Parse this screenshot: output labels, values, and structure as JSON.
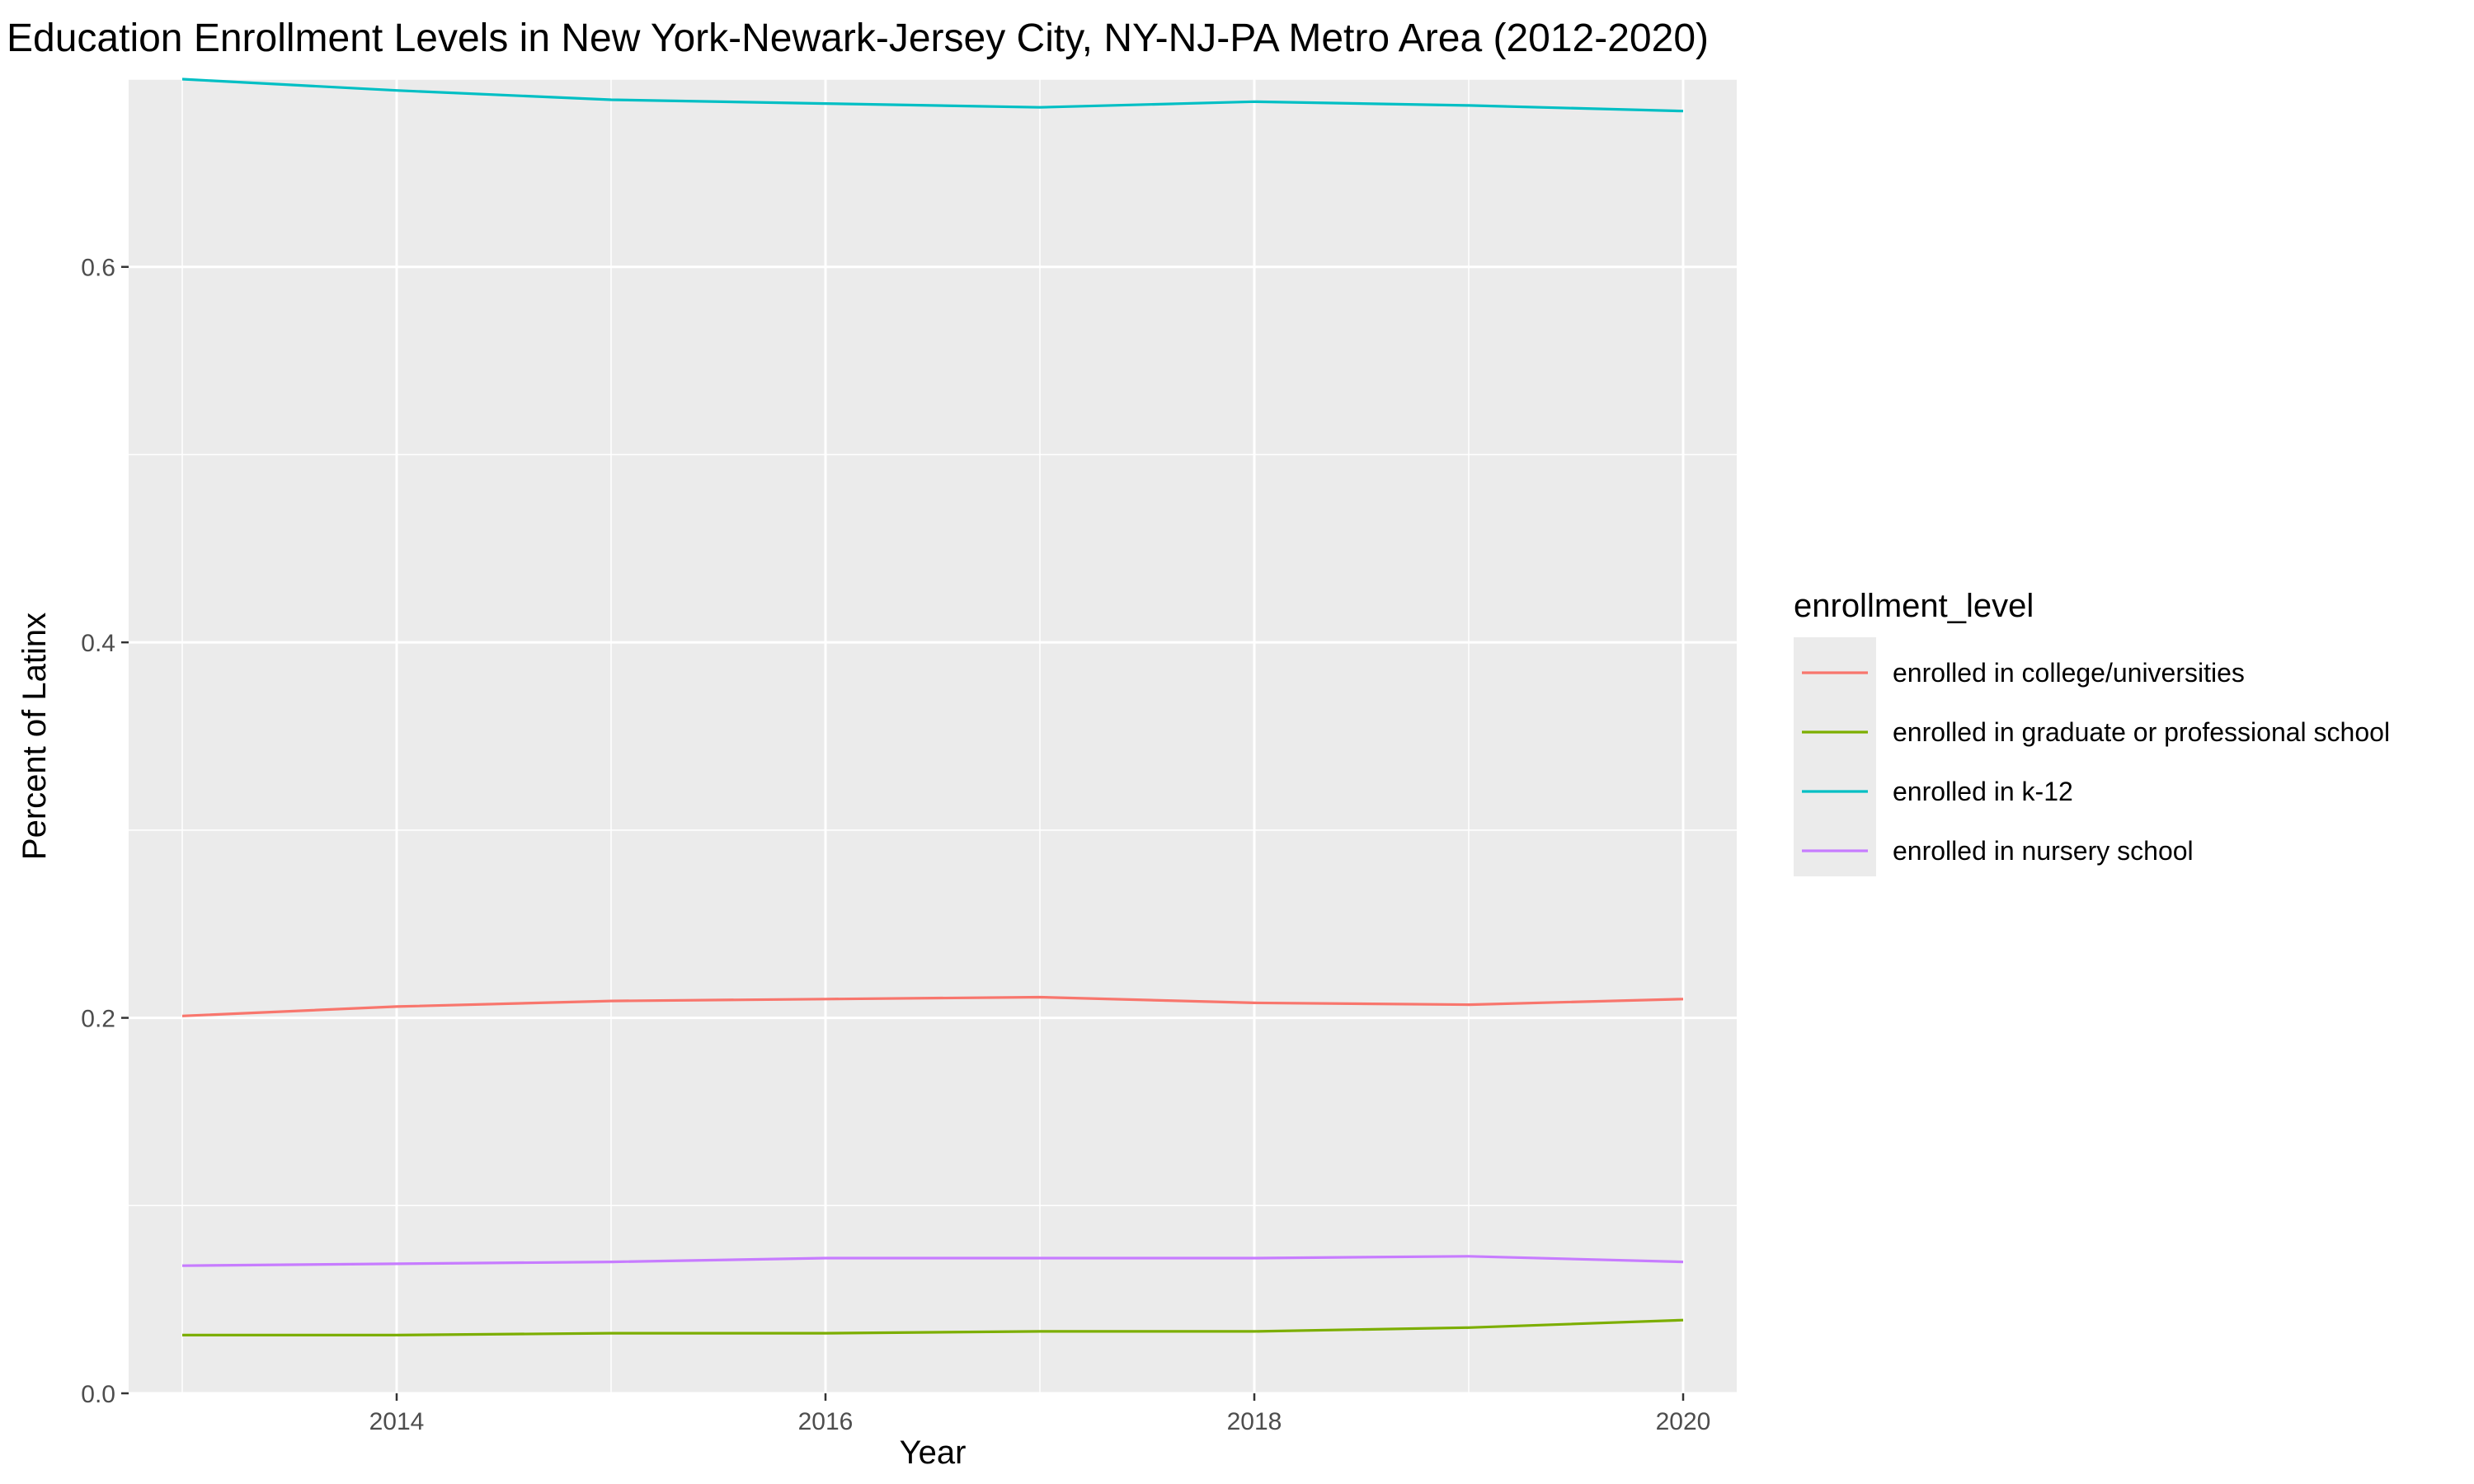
{
  "chart_data": {
    "type": "line",
    "title": "Education Enrollment Levels in New York-Newark-Jersey City, NY-NJ-PA Metro Area (2012-2020)",
    "xlabel": "Year",
    "ylabel": "Percent of Latinx",
    "xlim": [
      2012.75,
      2020.25
    ],
    "ylim": [
      -0.0,
      0.7
    ],
    "x_ticks": [
      "2014",
      "2016",
      "2018",
      "2020"
    ],
    "y_ticks": [
      "0.0",
      "0.2",
      "0.4",
      "0.6"
    ],
    "grid": true,
    "legend_title": "enrollment_level",
    "legend_position": "right",
    "x": [
      2013,
      2014,
      2015,
      2016,
      2017,
      2018,
      2019,
      2020
    ],
    "series": [
      {
        "name": "enrolled in college/universities",
        "color": "#F8766D",
        "values": [
          0.201,
          0.206,
          0.209,
          0.21,
          0.211,
          0.208,
          0.207,
          0.21
        ]
      },
      {
        "name": "enrolled in graduate or professional school",
        "color": "#7CAE00",
        "values": [
          0.031,
          0.031,
          0.032,
          0.032,
          0.033,
          0.033,
          0.035,
          0.039
        ]
      },
      {
        "name": "enrolled in k-12",
        "color": "#00BFC4",
        "values": [
          0.7,
          0.694,
          0.689,
          0.687,
          0.685,
          0.688,
          0.686,
          0.683
        ]
      },
      {
        "name": "enrolled in nursery school",
        "color": "#C77CFF",
        "values": [
          0.068,
          0.069,
          0.07,
          0.072,
          0.072,
          0.072,
          0.073,
          0.07
        ]
      }
    ]
  }
}
